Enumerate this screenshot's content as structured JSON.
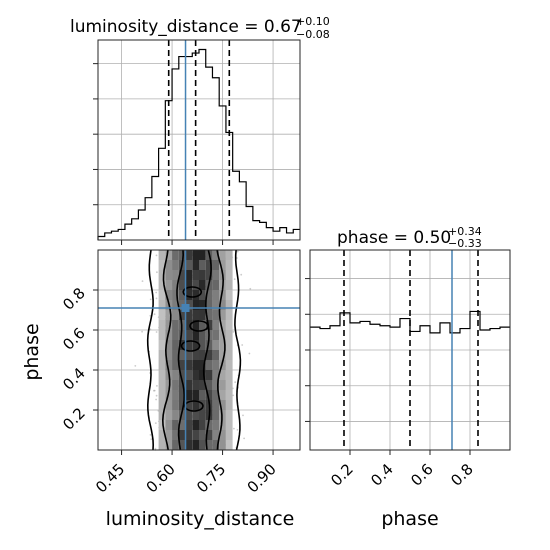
{
  "chart_data": {
    "type": "corner",
    "parameters": [
      "luminosity_distance",
      "phase"
    ],
    "titles": {
      "luminosity_distance": {
        "prefix": "luminosity_distance = ",
        "median": "0.67",
        "plus": "+0.10",
        "minus": "−0.08"
      },
      "phase": {
        "prefix": "phase = ",
        "median": "0.50",
        "plus": "+0.34",
        "minus": "−0.33"
      }
    },
    "axis_labels": {
      "x1": "luminosity_distance",
      "x2": "phase",
      "y": "phase"
    },
    "ranges": {
      "luminosity_distance": [
        0.38,
        0.98
      ],
      "phase": [
        0.0,
        1.0
      ]
    },
    "ticks": {
      "luminosity_distance": [
        "0.45",
        "0.60",
        "0.75",
        "0.90"
      ],
      "phase": [
        "0.2",
        "0.4",
        "0.6",
        "0.8"
      ]
    },
    "truth": {
      "luminosity_distance": 0.64,
      "phase": 0.71
    },
    "quantiles": {
      "luminosity_distance": [
        0.59,
        0.67,
        0.77
      ],
      "phase": [
        0.17,
        0.5,
        0.84
      ]
    },
    "histogram_luminosity_distance": {
      "bin_edges": [
        0.38,
        0.4,
        0.42,
        0.44,
        0.46,
        0.48,
        0.5,
        0.52,
        0.54,
        0.56,
        0.58,
        0.6,
        0.62,
        0.64,
        0.66,
        0.68,
        0.7,
        0.72,
        0.74,
        0.76,
        0.78,
        0.8,
        0.82,
        0.84,
        0.86,
        0.88,
        0.9,
        0.92,
        0.94,
        0.96,
        0.98
      ],
      "counts": [
        2,
        4,
        5,
        6,
        9,
        12,
        17,
        24,
        36,
        52,
        79,
        97,
        104,
        104,
        106,
        108,
        98,
        92,
        76,
        61,
        39,
        33,
        19,
        11,
        10,
        7,
        5,
        7,
        4,
        6
      ]
    },
    "histogram_phase": {
      "bin_edges": [
        0.0,
        0.05,
        0.1,
        0.15,
        0.2,
        0.25,
        0.3,
        0.35,
        0.4,
        0.45,
        0.5,
        0.55,
        0.6,
        0.65,
        0.7,
        0.75,
        0.8,
        0.85,
        0.9,
        0.95,
        1.0
      ],
      "counts": [
        86,
        85,
        87,
        96,
        89,
        90,
        88,
        87,
        86,
        92,
        83,
        87,
        82,
        89,
        82,
        85,
        97,
        84,
        85,
        86
      ]
    },
    "grid": true
  }
}
